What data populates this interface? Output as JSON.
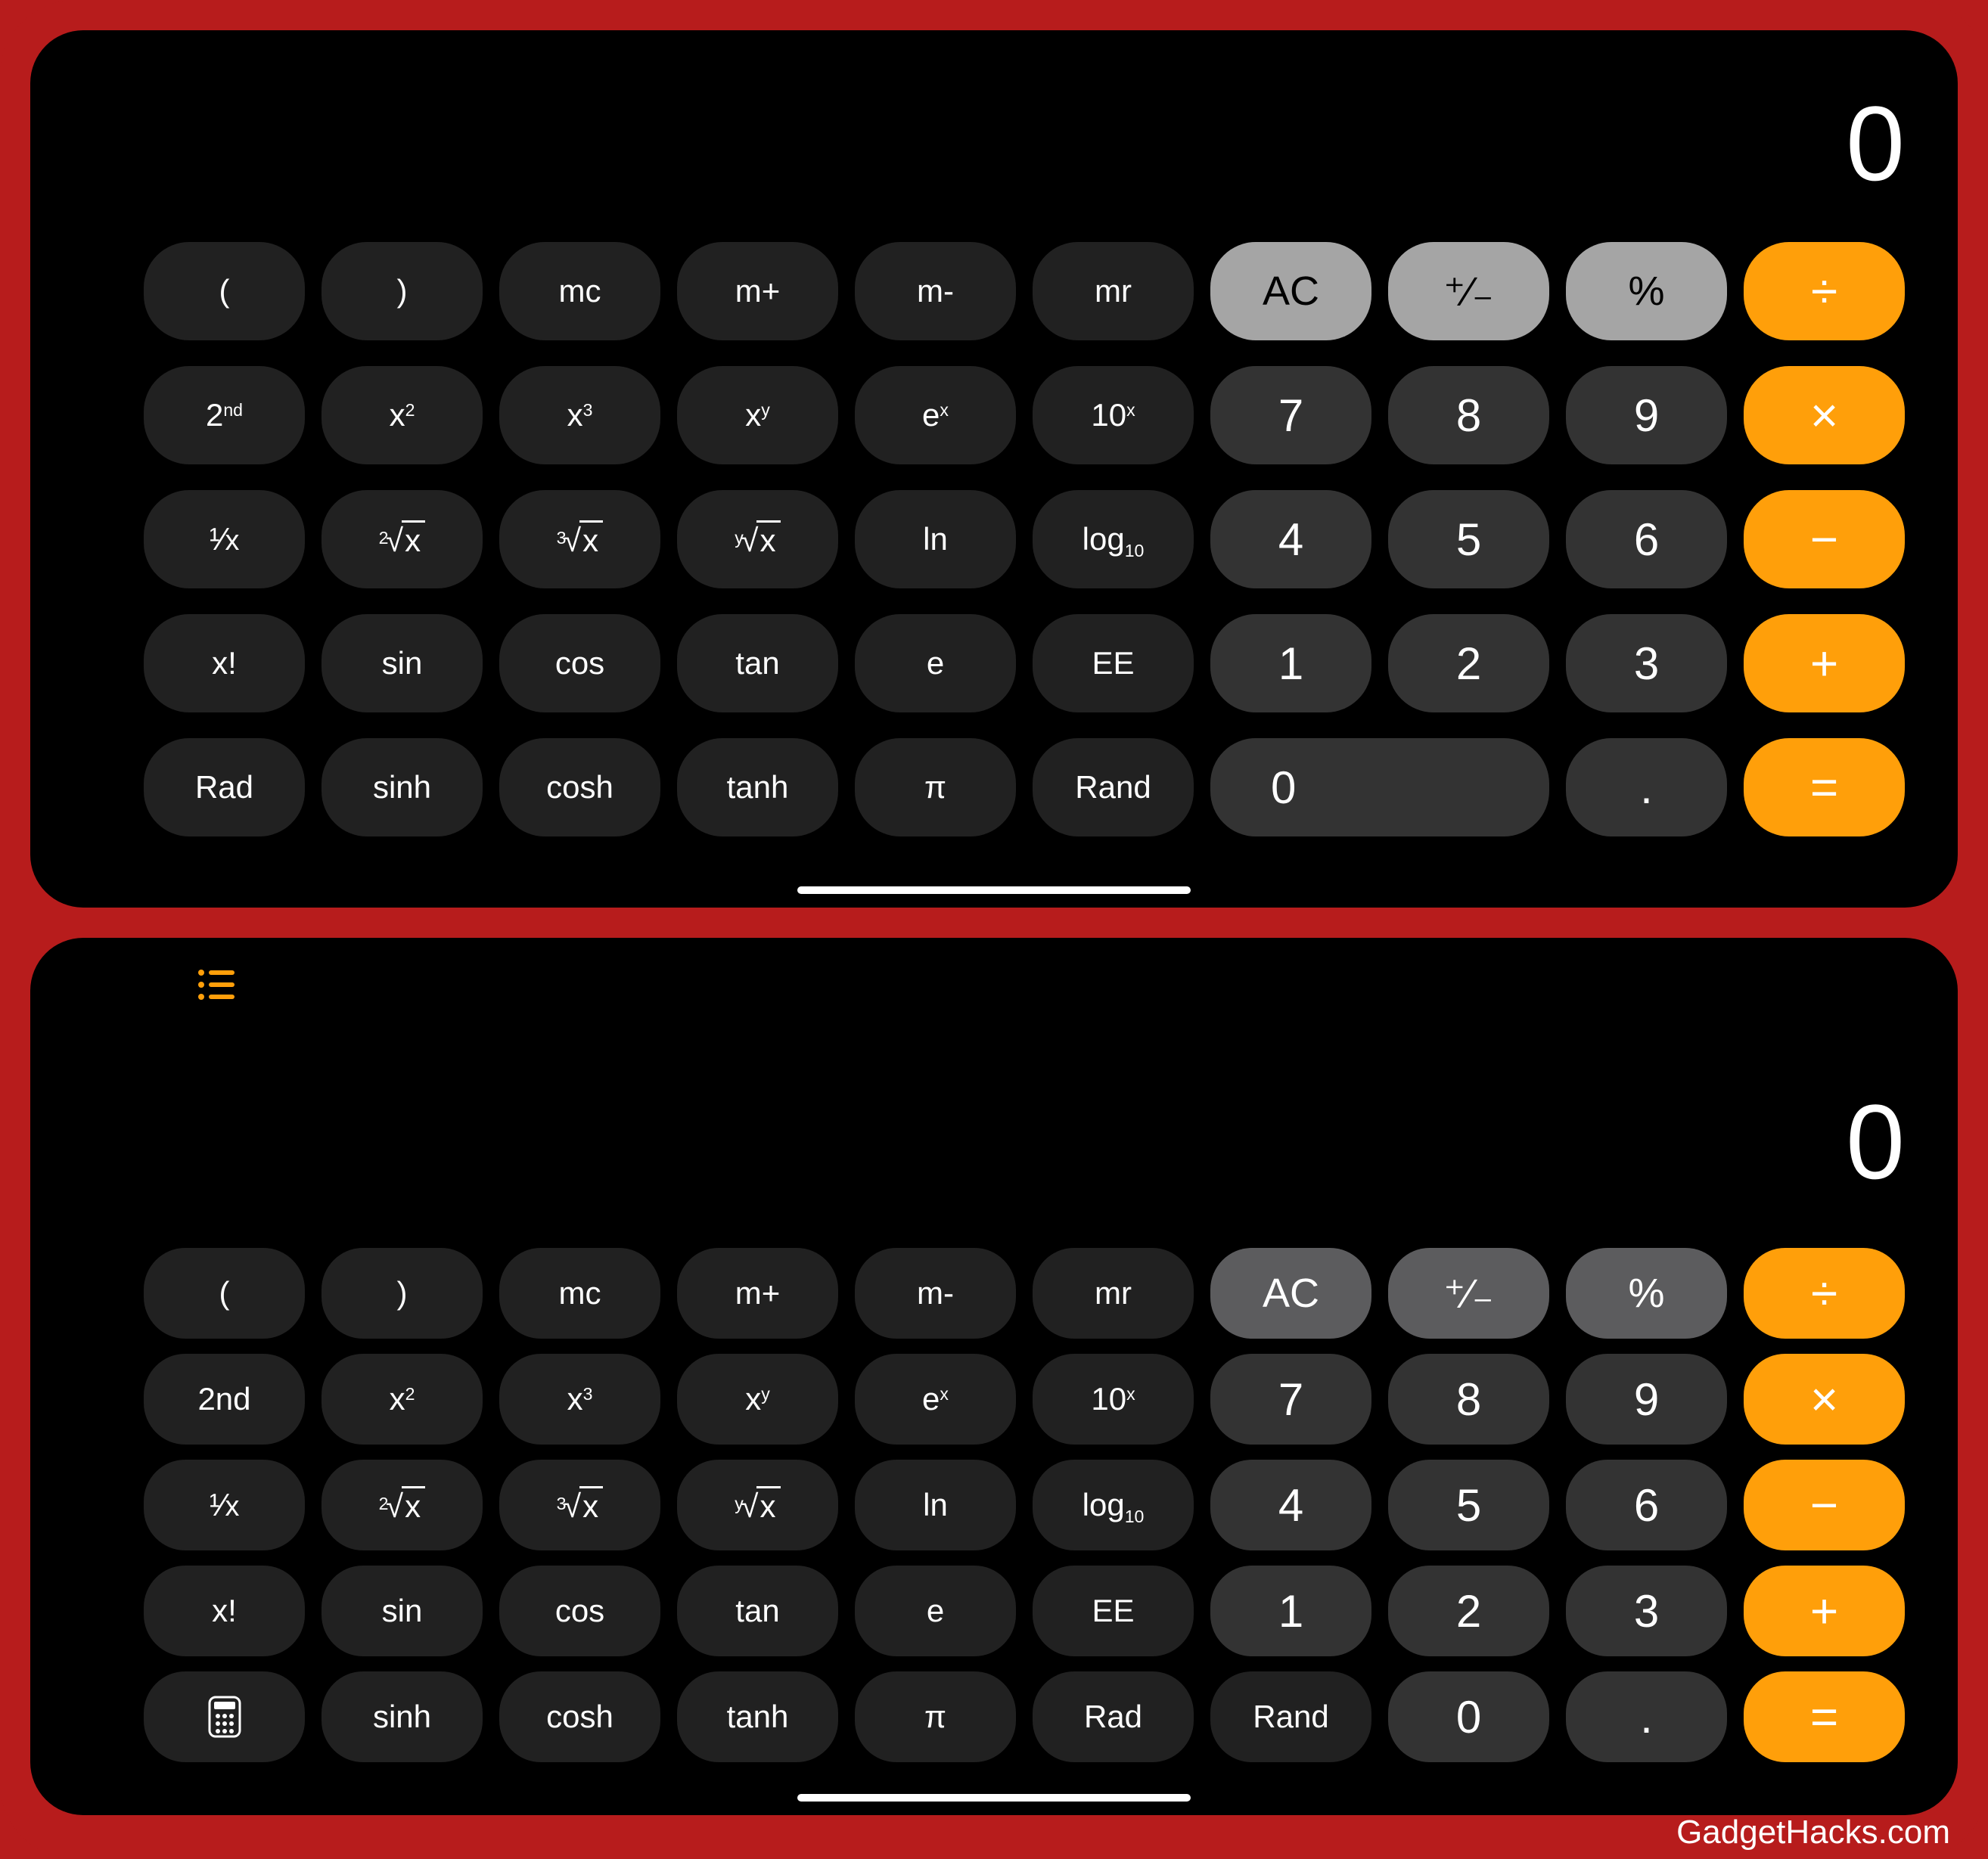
{
  "frame_bg": "#b71c1c",
  "panel_bg": "#000000",
  "watermark": "GadgetHacks.com",
  "colors": {
    "scientific_btn": "#212121",
    "digit_btn": "#333333",
    "light_btn_top": "#a5a5a5",
    "light_btn_bottom": "#5c5c5e",
    "operator_btn": "#ff9f0a",
    "text_white": "#ffffff",
    "text_black": "#000000"
  },
  "top_calc": {
    "display": "0",
    "rows": [
      [
        {
          "id": "lparen",
          "label": "(",
          "style": "dark1"
        },
        {
          "id": "rparen",
          "label": ")",
          "style": "dark1"
        },
        {
          "id": "mc",
          "label": "mc",
          "style": "dark1"
        },
        {
          "id": "mplus",
          "label": "m+",
          "style": "dark1"
        },
        {
          "id": "mminus",
          "label": "m-",
          "style": "dark1"
        },
        {
          "id": "mr",
          "label": "mr",
          "style": "dark1"
        },
        {
          "id": "ac",
          "label": "AC",
          "style": "light"
        },
        {
          "id": "plusminus",
          "label": "⁺∕₋",
          "style": "light"
        },
        {
          "id": "percent",
          "label": "%",
          "style": "light"
        },
        {
          "id": "divide",
          "label": "÷",
          "style": "orange"
        }
      ],
      [
        {
          "id": "second",
          "base": "2",
          "sup": "nd",
          "style": "dark1"
        },
        {
          "id": "x2",
          "base": "x",
          "sup": "2",
          "style": "dark1"
        },
        {
          "id": "x3",
          "base": "x",
          "sup": "3",
          "style": "dark1"
        },
        {
          "id": "xy",
          "base": "x",
          "sup": "y",
          "style": "dark1"
        },
        {
          "id": "ex",
          "base": "e",
          "sup": "x",
          "style": "dark1"
        },
        {
          "id": "tenx",
          "base": "10",
          "sup": "x",
          "style": "dark1"
        },
        {
          "id": "d7",
          "label": "7",
          "style": "dark2"
        },
        {
          "id": "d8",
          "label": "8",
          "style": "dark2"
        },
        {
          "id": "d9",
          "label": "9",
          "style": "dark2"
        },
        {
          "id": "multiply",
          "label": "×",
          "style": "orange"
        }
      ],
      [
        {
          "id": "recip",
          "base": "¹∕",
          "sub": "x",
          "style": "dark1",
          "frac": true
        },
        {
          "id": "sqrt",
          "rootIdx": "2",
          "rootArg": "x",
          "style": "dark1"
        },
        {
          "id": "cbrt",
          "rootIdx": "3",
          "rootArg": "x",
          "style": "dark1"
        },
        {
          "id": "yroot",
          "rootIdx": "y",
          "rootArg": "x",
          "style": "dark1"
        },
        {
          "id": "ln",
          "label": "ln",
          "style": "dark1"
        },
        {
          "id": "log10",
          "base": "log",
          "sub": "10",
          "style": "dark1"
        },
        {
          "id": "d4",
          "label": "4",
          "style": "dark2"
        },
        {
          "id": "d5",
          "label": "5",
          "style": "dark2"
        },
        {
          "id": "d6",
          "label": "6",
          "style": "dark2"
        },
        {
          "id": "minus",
          "label": "−",
          "style": "orange"
        }
      ],
      [
        {
          "id": "fact",
          "label": "x!",
          "style": "dark1"
        },
        {
          "id": "sin",
          "label": "sin",
          "style": "dark1"
        },
        {
          "id": "cos",
          "label": "cos",
          "style": "dark1"
        },
        {
          "id": "tan",
          "label": "tan",
          "style": "dark1"
        },
        {
          "id": "e",
          "label": "e",
          "style": "dark1"
        },
        {
          "id": "ee",
          "label": "EE",
          "style": "dark1"
        },
        {
          "id": "d1",
          "label": "1",
          "style": "dark2"
        },
        {
          "id": "d2",
          "label": "2",
          "style": "dark2"
        },
        {
          "id": "d3",
          "label": "3",
          "style": "dark2"
        },
        {
          "id": "plus",
          "label": "+",
          "style": "orange"
        }
      ],
      [
        {
          "id": "rad",
          "label": "Rad",
          "style": "dark1"
        },
        {
          "id": "sinh",
          "label": "sinh",
          "style": "dark1"
        },
        {
          "id": "cosh",
          "label": "cosh",
          "style": "dark1"
        },
        {
          "id": "tanh",
          "label": "tanh",
          "style": "dark1"
        },
        {
          "id": "pi",
          "label": "π",
          "style": "dark1"
        },
        {
          "id": "rand",
          "label": "Rand",
          "style": "dark1"
        },
        {
          "id": "d0",
          "label": "0",
          "style": "dark2",
          "span": 2,
          "zeroLeft": true
        },
        {
          "id": "dot",
          "label": ".",
          "style": "dark2"
        },
        {
          "id": "equals",
          "label": "=",
          "style": "orange"
        }
      ]
    ]
  },
  "bottom_calc": {
    "display": "0",
    "history_icon": true,
    "rows": [
      [
        {
          "id": "lparen",
          "label": "(",
          "style": "dark1"
        },
        {
          "id": "rparen",
          "label": ")",
          "style": "dark1"
        },
        {
          "id": "mc",
          "label": "mc",
          "style": "dark1"
        },
        {
          "id": "mplus",
          "label": "m+",
          "style": "dark1"
        },
        {
          "id": "mminus",
          "label": "m-",
          "style": "dark1"
        },
        {
          "id": "mr",
          "label": "mr",
          "style": "dark1"
        },
        {
          "id": "ac",
          "label": "AC",
          "style": "light2"
        },
        {
          "id": "plusminus",
          "label": "⁺∕₋",
          "style": "light2"
        },
        {
          "id": "percent",
          "label": "%",
          "style": "light2"
        },
        {
          "id": "divide",
          "label": "÷",
          "style": "orange"
        }
      ],
      [
        {
          "id": "second",
          "label": "2nd",
          "style": "dark1"
        },
        {
          "id": "x2",
          "base": "x",
          "sup": "2",
          "style": "dark1"
        },
        {
          "id": "x3",
          "base": "x",
          "sup": "3",
          "style": "dark1"
        },
        {
          "id": "xy",
          "base": "x",
          "sup": "y",
          "style": "dark1"
        },
        {
          "id": "ex",
          "base": "e",
          "sup": "x",
          "style": "dark1"
        },
        {
          "id": "tenx",
          "base": "10",
          "sup": "x",
          "style": "dark1"
        },
        {
          "id": "d7",
          "label": "7",
          "style": "dark2"
        },
        {
          "id": "d8",
          "label": "8",
          "style": "dark2"
        },
        {
          "id": "d9",
          "label": "9",
          "style": "dark2"
        },
        {
          "id": "multiply",
          "label": "×",
          "style": "orange"
        }
      ],
      [
        {
          "id": "recip",
          "base": "¹∕",
          "sub": "x",
          "style": "dark1",
          "frac": true
        },
        {
          "id": "sqrt",
          "rootIdx": "2",
          "rootArg": "x",
          "style": "dark1"
        },
        {
          "id": "cbrt",
          "rootIdx": "3",
          "rootArg": "x",
          "style": "dark1"
        },
        {
          "id": "yroot",
          "rootIdx": "y",
          "rootArg": "x",
          "style": "dark1"
        },
        {
          "id": "ln",
          "label": "ln",
          "style": "dark1"
        },
        {
          "id": "log10",
          "base": "log",
          "sub": "10",
          "style": "dark1"
        },
        {
          "id": "d4",
          "label": "4",
          "style": "dark2"
        },
        {
          "id": "d5",
          "label": "5",
          "style": "dark2"
        },
        {
          "id": "d6",
          "label": "6",
          "style": "dark2"
        },
        {
          "id": "minus",
          "label": "−",
          "style": "orange"
        }
      ],
      [
        {
          "id": "fact",
          "label": "x!",
          "style": "dark1"
        },
        {
          "id": "sin",
          "label": "sin",
          "style": "dark1"
        },
        {
          "id": "cos",
          "label": "cos",
          "style": "dark1"
        },
        {
          "id": "tan",
          "label": "tan",
          "style": "dark1"
        },
        {
          "id": "e",
          "label": "e",
          "style": "dark1"
        },
        {
          "id": "ee",
          "label": "EE",
          "style": "dark1"
        },
        {
          "id": "d1",
          "label": "1",
          "style": "dark2"
        },
        {
          "id": "d2",
          "label": "2",
          "style": "dark2"
        },
        {
          "id": "d3",
          "label": "3",
          "style": "dark2"
        },
        {
          "id": "plus",
          "label": "+",
          "style": "orange"
        }
      ],
      [
        {
          "id": "calcmode",
          "icon": "calculator",
          "style": "dark1"
        },
        {
          "id": "sinh",
          "label": "sinh",
          "style": "dark1"
        },
        {
          "id": "cosh",
          "label": "cosh",
          "style": "dark1"
        },
        {
          "id": "tanh",
          "label": "tanh",
          "style": "dark1"
        },
        {
          "id": "pi",
          "label": "π",
          "style": "dark1"
        },
        {
          "id": "rad",
          "label": "Rad",
          "style": "dark1"
        },
        {
          "id": "rand",
          "label": "Rand",
          "style": "dark1"
        },
        {
          "id": "d0",
          "label": "0",
          "style": "dark2"
        },
        {
          "id": "dot",
          "label": ".",
          "style": "dark2"
        },
        {
          "id": "equals",
          "label": "=",
          "style": "orange"
        }
      ]
    ]
  }
}
